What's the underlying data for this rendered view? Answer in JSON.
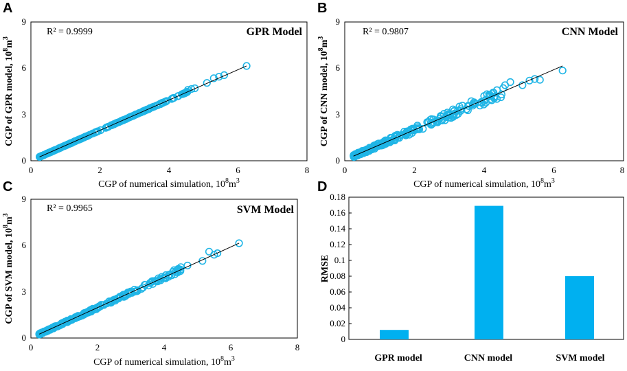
{
  "colors": {
    "marker": "#1fb5e6",
    "bar": "#00b0f0",
    "line": "#000000"
  },
  "chart_data": [
    {
      "id": "A",
      "type": "scatter",
      "panel_label": "A",
      "title": "GPR Model",
      "r2": "R² = 0.9999",
      "xlabel": "CGP of numerical simulation, ",
      "ylabel": "CGP of GPR model, ",
      "unit_base": "10",
      "unit_exp": "8",
      "unit_m": "m",
      "unit_m_exp": "3",
      "xlim": [
        0,
        8
      ],
      "ylim": [
        0,
        9
      ],
      "xticks": [
        "0",
        "2",
        "4",
        "6",
        "8"
      ],
      "yticks": [
        "0",
        "3",
        "6",
        "9"
      ],
      "fit": [
        [
          0.25,
          0.25
        ],
        [
          6.25,
          6.15
        ]
      ],
      "noise": 0.01,
      "points": [
        [
          4.55,
          4.6
        ],
        [
          4.65,
          4.65
        ],
        [
          4.75,
          4.7
        ],
        [
          5.1,
          5.05
        ],
        [
          5.3,
          5.35
        ],
        [
          5.45,
          5.45
        ],
        [
          5.6,
          5.55
        ],
        [
          6.25,
          6.15
        ]
      ]
    },
    {
      "id": "B",
      "type": "scatter",
      "panel_label": "B",
      "title": "CNN Model",
      "r2": "R² = 0.9807",
      "xlabel": "CGP of numerical simulation, ",
      "ylabel": "CGP of  CNN model, ",
      "unit_base": "10",
      "unit_exp": "8",
      "unit_m": "m",
      "unit_m_exp": "3",
      "xlim": [
        0,
        8
      ],
      "ylim": [
        0,
        9
      ],
      "xticks": [
        "0",
        "2",
        "4",
        "6",
        "8"
      ],
      "yticks": [
        "0",
        "3",
        "6",
        "9"
      ],
      "fit": [
        [
          0.25,
          0.3
        ],
        [
          6.25,
          6.15
        ]
      ],
      "noise": 0.18,
      "points": [
        [
          4.0,
          4.2
        ],
        [
          4.2,
          4.0
        ],
        [
          4.5,
          4.3
        ],
        [
          4.6,
          4.9
        ],
        [
          4.75,
          5.1
        ],
        [
          5.1,
          4.9
        ],
        [
          5.3,
          5.2
        ],
        [
          5.45,
          5.3
        ],
        [
          5.6,
          5.25
        ],
        [
          6.25,
          5.85
        ]
      ]
    },
    {
      "id": "C",
      "type": "scatter",
      "panel_label": "C",
      "title": "SVM Model",
      "r2": "R² = 0.9965",
      "xlabel": "CGP of numerical simulation, ",
      "ylabel": "CGP of  SVM model, ",
      "unit_base": "10",
      "unit_exp": "8",
      "unit_m": "m",
      "unit_m_exp": "3",
      "xlim": [
        0,
        8
      ],
      "ylim": [
        0,
        9
      ],
      "xticks": [
        "0",
        "2",
        "4",
        "6",
        "8"
      ],
      "yticks": [
        "0",
        "3",
        "6",
        "9"
      ],
      "fit": [
        [
          0.25,
          0.25
        ],
        [
          6.25,
          6.15
        ]
      ],
      "noise": 0.07,
      "points": [
        [
          4.3,
          4.4
        ],
        [
          4.5,
          4.6
        ],
        [
          4.7,
          4.7
        ],
        [
          5.15,
          5.0
        ],
        [
          5.35,
          5.6
        ],
        [
          5.5,
          5.4
        ],
        [
          5.6,
          5.5
        ],
        [
          6.25,
          6.15
        ]
      ]
    },
    {
      "id": "D",
      "type": "bar",
      "panel_label": "D",
      "ylabel": "RMSE",
      "categories": [
        "GPR model",
        "CNN model",
        "SVM model"
      ],
      "values": [
        0.012,
        0.169,
        0.08
      ],
      "ylim": [
        0,
        0.18
      ],
      "yticks": [
        "0",
        "0.02",
        "0.04",
        "0.06",
        "0.08",
        "0.1",
        "0.12",
        "0.14",
        "0.16",
        "0.18"
      ]
    }
  ]
}
